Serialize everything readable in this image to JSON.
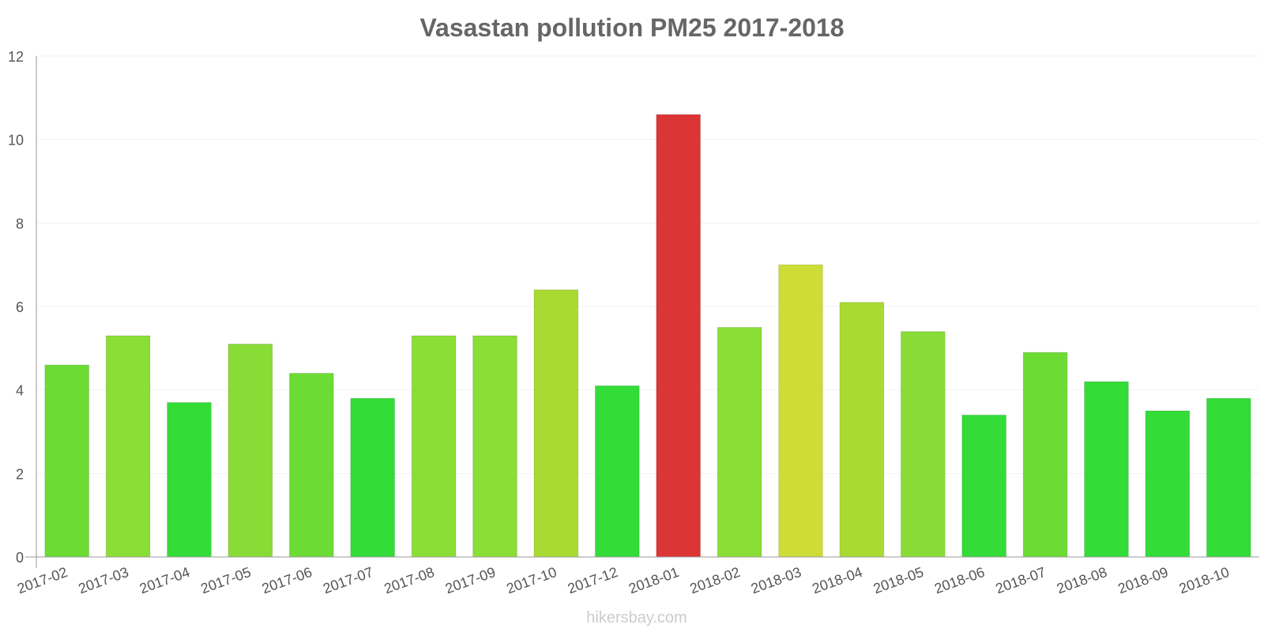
{
  "chart_data": {
    "type": "bar",
    "title": "Vasastan pollution PM25 2017-2018",
    "xlabel": "",
    "ylabel": "",
    "ylim": [
      0,
      12
    ],
    "yticks": [
      "0",
      "2",
      "4",
      "6",
      "8",
      "10",
      "12"
    ],
    "grid": true,
    "categories": [
      "2017-02",
      "2017-03",
      "2017-04",
      "2017-05",
      "2017-06",
      "2017-07",
      "2017-08",
      "2017-09",
      "2017-10",
      "2017-12",
      "2018-01",
      "2018-02",
      "2018-03",
      "2018-04",
      "2018-05",
      "2018-06",
      "2018-07",
      "2018-08",
      "2018-09",
      "2018-10"
    ],
    "values": [
      4.6,
      5.3,
      3.7,
      5.1,
      4.4,
      3.8,
      5.3,
      5.3,
      6.4,
      4.1,
      10.6,
      5.5,
      7.0,
      6.1,
      5.4,
      3.4,
      4.9,
      4.2,
      3.5,
      3.8
    ],
    "colors": [
      "#6cdc35",
      "#8ade35",
      "#33dc37",
      "#88dc35",
      "#6cdc35",
      "#33dc37",
      "#8ade35",
      "#8ade35",
      "#a8da32",
      "#33dc37",
      "#dc3535",
      "#8ade35",
      "#cddd35",
      "#a8da32",
      "#88dc35",
      "#33dc37",
      "#6cdc35",
      "#33dc37",
      "#33dc37",
      "#33dc37"
    ]
  },
  "watermark": "hikersbay.com",
  "colors": {
    "axis": "#999999",
    "grid": "#f2f2f2",
    "title": "#666666",
    "tick_text": "#555555",
    "watermark": "#cccccc"
  }
}
